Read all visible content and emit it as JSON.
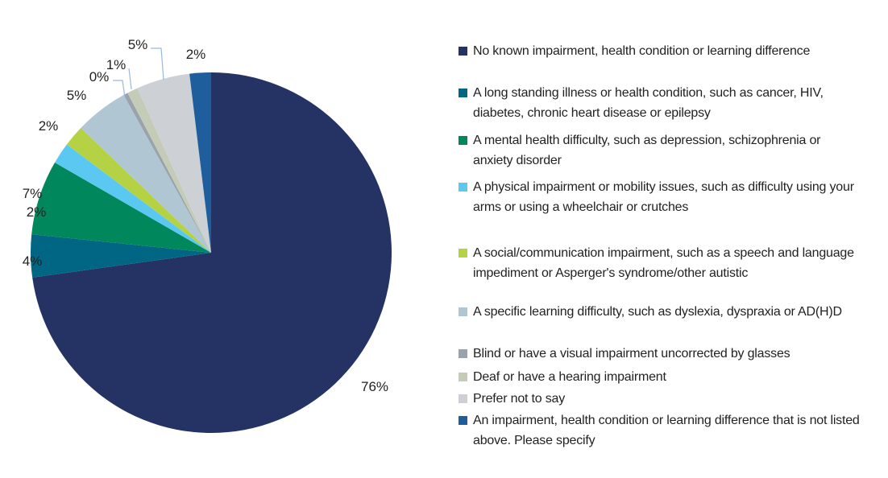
{
  "chart_data": {
    "type": "pie",
    "start": "12 o'clock, clockwise",
    "legend_position": "right",
    "slices": [
      {
        "label": "No known impairment, health condition or learning difference",
        "value": 76,
        "data_label": "76%",
        "color": "#253264"
      },
      {
        "label": "A long standing illness or health condition, such as cancer, HIV, diabetes, chronic heart disease or epilepsy",
        "value": 4,
        "data_label": "4%",
        "color": "#006683"
      },
      {
        "label": "A mental health difficulty, such as depression, schizophrenia or anxiety disorder",
        "value": 7,
        "data_label": "7%",
        "color": "#00875c"
      },
      {
        "label": "A physical impairment or mobility issues, such as difficulty using your arms or using a wheelchair or crutches",
        "value": 2,
        "data_label": "2%",
        "color": "#5bc8f2"
      },
      {
        "label": "A social/communication impairment, such as a speech and language impediment or Asperger's syndrome/other autistic",
        "value": 2,
        "data_label": "2%",
        "color": "#b4d244"
      },
      {
        "label": " A specific learning difficulty, such as dyslexia, dyspraxia or AD(H)D",
        "value": 5,
        "data_label": "5%",
        "color": "#b0c6d2"
      },
      {
        "label": "Blind or have a visual impairment uncorrected by glasses",
        "value": 0,
        "data_label": "0%",
        "color": "#9aa3ab"
      },
      {
        "label": "Deaf or have a hearing impairment",
        "value": 1,
        "data_label": "1%",
        "color": "#c4ccb8"
      },
      {
        "label": "Prefer not to say",
        "value": 5,
        "data_label": "5%",
        "color": "#cdd1d5"
      },
      {
        "label": "An impairment, health condition or learning difference that is not listed above. Please specify",
        "value": 2,
        "data_label": "2%",
        "color": "#1f5e9c"
      }
    ]
  }
}
